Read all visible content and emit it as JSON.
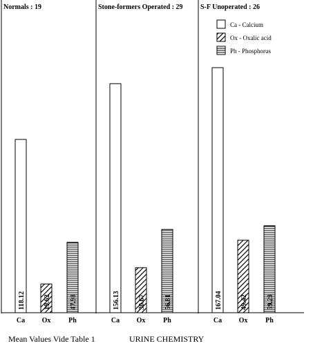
{
  "chart_data": {
    "type": "bar",
    "panels": [
      {
        "title": "Normals : 19",
        "categories": [
          "Ca",
          "Ox",
          "Ph"
        ],
        "values": [
          118.12,
          19.62,
          47.98
        ]
      },
      {
        "title": "Stone-formers Operated : 29",
        "categories": [
          "Ca",
          "Ox",
          "Ph"
        ],
        "values": [
          156.13,
          30.67,
          56.81
        ]
      },
      {
        "title": "S-F Unoperated : 26",
        "categories": [
          "Ca",
          "Ox",
          "Ph"
        ],
        "values": [
          167.04,
          49.42,
          59.29
        ]
      }
    ],
    "ylim": [
      0,
      170
    ],
    "legend": {
      "placement": "top-right",
      "entries": [
        {
          "label": "Ca - Calcium",
          "pattern": "plain"
        },
        {
          "label": "Ox - Oxalic acid",
          "pattern": "diagonal"
        },
        {
          "label": "Ph - Phosphorus",
          "pattern": "horizontal"
        }
      ]
    }
  },
  "footer": {
    "note": "Mean Values Vide Table 1",
    "caption": "URINE CHEMISTRY"
  }
}
